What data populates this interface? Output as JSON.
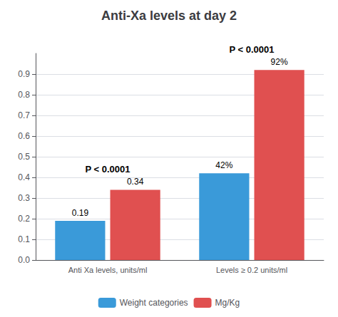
{
  "chart_data": {
    "type": "bar",
    "title": "Anti-Xa levels at day 2",
    "categories": [
      "Anti Xa levels, units/ml",
      "Levels ≥ 0.2 units/ml"
    ],
    "series": [
      {
        "name": "Weight categories",
        "color": "#3A9AD9",
        "values": [
          0.19,
          0.42
        ],
        "value_labels": [
          "0.19",
          "42%"
        ]
      },
      {
        "name": "Mg/Kg",
        "color": "#E05050",
        "values": [
          0.34,
          0.92
        ],
        "value_labels": [
          "0.34",
          "92%"
        ]
      }
    ],
    "annotations": [
      "P < 0.0001",
      "P < 0.0001"
    ],
    "ylim": [
      0,
      1.0
    ],
    "yticks": [
      {
        "value": 0,
        "label": "0.0"
      },
      0.1,
      0.2,
      0.3,
      0.4,
      0.5,
      0.6,
      0.7,
      0.8,
      0.9
    ],
    "grid": true,
    "legend": "bottom",
    "data_labels": true
  }
}
